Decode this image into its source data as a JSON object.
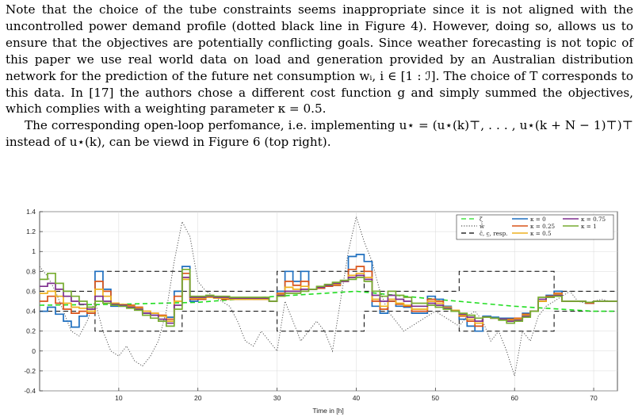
{
  "paragraphs": [
    "Note that the choice of the tube constraints seems inappropriate since it is not aligned with the uncontrolled power demand profile (dotted black line in Figure 4). However, doing so, allows us to ensure that the objectives are potentially conflicting goals. Since weather forecasting is not topic of this paper we use real world data on load and generation provided by an Australian distribution network for the prediction of the future net consumption wᵢ, i ∈ [1 : ℐ]. The choice of T corresponds to this data. In [17] the authors chose a different cost function g and simply summed the objectives, which complies with a weighting parameter κ = 0.5.",
    "The corresponding open-loop perfomance, i.e. implementing u⋆ = (u⋆(k)⊤, . . . , u⋆(k + N − 1)⊤)⊤ instead of u⋆(k), can be viewd in Figure 6 (top right)."
  ],
  "chart_data": {
    "type": "line",
    "xlabel": "Time in [h]",
    "ylabel": "",
    "xlim": [
      0,
      73
    ],
    "ylim": [
      -0.4,
      1.4
    ],
    "xticks": [
      10,
      20,
      30,
      40,
      50,
      60,
      70
    ],
    "yticks": [
      -0.4,
      -0.2,
      0,
      0.2,
      0.4,
      0.6,
      0.8,
      1,
      1.2,
      1.4
    ],
    "grid": true,
    "legend_position": "top-right",
    "series": [
      {
        "name": "ζ̄",
        "style": "dashed",
        "color": "#22dd22",
        "x": [
          0,
          10,
          20,
          30,
          40,
          50,
          60,
          70,
          73
        ],
        "y": [
          0.46,
          0.47,
          0.49,
          0.55,
          0.6,
          0.52,
          0.45,
          0.4,
          0.4
        ]
      },
      {
        "name": "ŵ",
        "style": "dotted",
        "color": "#555555",
        "x": [
          0,
          1,
          2,
          3,
          4,
          5,
          6,
          7,
          8,
          9,
          10,
          11,
          12,
          13,
          14,
          15,
          16,
          17,
          18,
          19,
          20,
          21,
          22,
          23,
          24,
          25,
          26,
          27,
          28,
          29,
          30,
          31,
          32,
          33,
          34,
          35,
          36,
          37,
          38,
          39,
          40,
          41,
          42,
          43,
          44,
          45,
          46,
          47,
          48,
          49,
          50,
          51,
          52,
          53,
          54,
          55,
          56,
          57,
          58,
          59,
          60,
          61,
          62,
          63,
          64,
          65,
          66,
          67,
          68,
          69,
          70,
          71,
          72
        ],
        "y": [
          0.85,
          0.75,
          0.6,
          0.4,
          0.2,
          0.15,
          0.3,
          0.5,
          0.2,
          0.0,
          -0.05,
          0.05,
          -0.1,
          -0.15,
          -0.05,
          0.1,
          0.4,
          0.9,
          1.3,
          1.15,
          0.7,
          0.6,
          0.55,
          0.5,
          0.45,
          0.3,
          0.1,
          0.05,
          0.2,
          0.1,
          0.0,
          0.5,
          0.3,
          0.1,
          0.2,
          0.3,
          0.2,
          0.0,
          0.5,
          1.0,
          1.35,
          1.1,
          0.9,
          0.6,
          0.4,
          0.3,
          0.2,
          0.25,
          0.3,
          0.35,
          0.4,
          0.35,
          0.3,
          0.25,
          0.35,
          0.4,
          0.3,
          0.1,
          0.2,
          0.0,
          -0.25,
          0.2,
          0.1,
          0.35,
          0.45,
          0.5,
          0.55,
          0.6,
          0.5,
          0.48,
          0.5,
          0.52,
          0.5
        ]
      },
      {
        "name": "c̄, c̲, resp.",
        "style": "dashed",
        "color": "#000000",
        "x": [
          0,
          7,
          7,
          18,
          18,
          30,
          30,
          41,
          41,
          53,
          53,
          65,
          65,
          73
        ],
        "y_upper": [
          0.6,
          0.6,
          0.8,
          0.8,
          0.6,
          0.6,
          0.8,
          0.8,
          0.6,
          0.6,
          0.8,
          0.8,
          0.6,
          0.6
        ],
        "y_lower": [
          0.4,
          0.4,
          0.2,
          0.2,
          0.4,
          0.4,
          0.2,
          0.2,
          0.4,
          0.4,
          0.2,
          0.2,
          0.4,
          0.4
        ]
      },
      {
        "name": "κ = 0",
        "style": "solid",
        "color": "#1f6fbf",
        "x": [
          0,
          1,
          2,
          3,
          4,
          5,
          6,
          7,
          8,
          9,
          10,
          11,
          12,
          13,
          14,
          15,
          16,
          17,
          18,
          19,
          20,
          21,
          22,
          23,
          24,
          25,
          26,
          27,
          28,
          29,
          30,
          31,
          32,
          33,
          34,
          35,
          36,
          37,
          38,
          39,
          40,
          41,
          42,
          43,
          44,
          45,
          46,
          47,
          48,
          49,
          50,
          51,
          52,
          53,
          54,
          55,
          56,
          57,
          58,
          59,
          60,
          61,
          62,
          63,
          64,
          65,
          66,
          67,
          68,
          69,
          70,
          71,
          72
        ],
        "y": [
          0.4,
          0.44,
          0.37,
          0.3,
          0.24,
          0.35,
          0.38,
          0.8,
          0.62,
          0.45,
          0.45,
          0.44,
          0.43,
          0.38,
          0.36,
          0.35,
          0.34,
          0.6,
          0.85,
          0.5,
          0.52,
          0.55,
          0.54,
          0.53,
          0.52,
          0.52,
          0.53,
          0.52,
          0.52,
          0.5,
          0.6,
          0.8,
          0.7,
          0.8,
          0.62,
          0.63,
          0.65,
          0.66,
          0.7,
          0.95,
          0.97,
          0.9,
          0.45,
          0.38,
          0.5,
          0.45,
          0.44,
          0.38,
          0.38,
          0.55,
          0.52,
          0.45,
          0.4,
          0.32,
          0.25,
          0.2,
          0.35,
          0.34,
          0.33,
          0.33,
          0.33,
          0.38,
          0.4,
          0.5,
          0.56,
          0.6,
          0.5,
          0.5,
          0.5,
          0.48,
          0.5,
          0.5,
          0.5
        ]
      },
      {
        "name": "κ = 0.25",
        "style": "solid",
        "color": "#d95319",
        "x": [
          0,
          1,
          2,
          3,
          4,
          5,
          6,
          7,
          8,
          9,
          10,
          11,
          12,
          13,
          14,
          15,
          16,
          17,
          18,
          19,
          20,
          21,
          22,
          23,
          24,
          25,
          26,
          27,
          28,
          29,
          30,
          31,
          32,
          33,
          34,
          35,
          36,
          37,
          38,
          39,
          40,
          41,
          42,
          43,
          44,
          45,
          46,
          47,
          48,
          49,
          50,
          51,
          52,
          53,
          54,
          55,
          56,
          57,
          58,
          59,
          60,
          61,
          62,
          63,
          64,
          65,
          66,
          67,
          68,
          69,
          70,
          71,
          72
        ],
        "y": [
          0.5,
          0.55,
          0.48,
          0.42,
          0.38,
          0.4,
          0.38,
          0.7,
          0.6,
          0.48,
          0.47,
          0.46,
          0.44,
          0.4,
          0.38,
          0.36,
          0.32,
          0.55,
          0.78,
          0.52,
          0.52,
          0.54,
          0.53,
          0.52,
          0.52,
          0.52,
          0.52,
          0.52,
          0.52,
          0.5,
          0.58,
          0.7,
          0.66,
          0.7,
          0.62,
          0.63,
          0.65,
          0.66,
          0.7,
          0.82,
          0.85,
          0.8,
          0.5,
          0.42,
          0.5,
          0.47,
          0.45,
          0.4,
          0.4,
          0.52,
          0.5,
          0.44,
          0.4,
          0.35,
          0.3,
          0.25,
          0.34,
          0.33,
          0.32,
          0.32,
          0.33,
          0.37,
          0.4,
          0.5,
          0.55,
          0.58,
          0.5,
          0.5,
          0.5,
          0.48,
          0.5,
          0.5,
          0.5
        ]
      },
      {
        "name": "κ = 0.5",
        "style": "solid",
        "color": "#edb120",
        "x": [
          0,
          1,
          2,
          3,
          4,
          5,
          6,
          7,
          8,
          9,
          10,
          11,
          12,
          13,
          14,
          15,
          16,
          17,
          18,
          19,
          20,
          21,
          22,
          23,
          24,
          25,
          26,
          27,
          28,
          29,
          30,
          31,
          32,
          33,
          34,
          35,
          36,
          37,
          38,
          39,
          40,
          41,
          42,
          43,
          44,
          45,
          46,
          47,
          48,
          49,
          50,
          51,
          52,
          53,
          54,
          55,
          56,
          57,
          58,
          59,
          60,
          61,
          62,
          63,
          64,
          65,
          66,
          67,
          68,
          69,
          70,
          71,
          72
        ],
        "y": [
          0.58,
          0.6,
          0.55,
          0.48,
          0.44,
          0.43,
          0.4,
          0.62,
          0.55,
          0.48,
          0.47,
          0.45,
          0.43,
          0.4,
          0.38,
          0.35,
          0.3,
          0.5,
          0.72,
          0.53,
          0.53,
          0.54,
          0.53,
          0.53,
          0.52,
          0.52,
          0.52,
          0.52,
          0.52,
          0.5,
          0.57,
          0.64,
          0.62,
          0.65,
          0.62,
          0.64,
          0.66,
          0.67,
          0.7,
          0.76,
          0.78,
          0.74,
          0.52,
          0.45,
          0.52,
          0.48,
          0.46,
          0.42,
          0.42,
          0.5,
          0.48,
          0.44,
          0.41,
          0.36,
          0.32,
          0.28,
          0.34,
          0.33,
          0.32,
          0.31,
          0.32,
          0.36,
          0.4,
          0.5,
          0.54,
          0.57,
          0.5,
          0.5,
          0.5,
          0.49,
          0.5,
          0.5,
          0.5
        ]
      },
      {
        "name": "κ = 0.75",
        "style": "solid",
        "color": "#7e2f8e",
        "x": [
          0,
          1,
          2,
          3,
          4,
          5,
          6,
          7,
          8,
          9,
          10,
          11,
          12,
          13,
          14,
          15,
          16,
          17,
          18,
          19,
          20,
          21,
          22,
          23,
          24,
          25,
          26,
          27,
          28,
          29,
          30,
          31,
          32,
          33,
          34,
          35,
          36,
          37,
          38,
          39,
          40,
          41,
          42,
          43,
          44,
          45,
          46,
          47,
          48,
          49,
          50,
          51,
          52,
          53,
          54,
          55,
          56,
          57,
          58,
          59,
          60,
          61,
          62,
          63,
          64,
          65,
          66,
          67,
          68,
          69,
          70,
          71,
          72
        ],
        "y": [
          0.65,
          0.68,
          0.62,
          0.55,
          0.5,
          0.47,
          0.42,
          0.55,
          0.5,
          0.47,
          0.46,
          0.44,
          0.42,
          0.38,
          0.36,
          0.32,
          0.28,
          0.46,
          0.74,
          0.54,
          0.54,
          0.55,
          0.54,
          0.54,
          0.53,
          0.53,
          0.53,
          0.53,
          0.53,
          0.5,
          0.56,
          0.6,
          0.6,
          0.62,
          0.62,
          0.64,
          0.66,
          0.68,
          0.7,
          0.74,
          0.76,
          0.72,
          0.56,
          0.5,
          0.56,
          0.52,
          0.5,
          0.45,
          0.45,
          0.48,
          0.46,
          0.43,
          0.4,
          0.37,
          0.34,
          0.3,
          0.34,
          0.33,
          0.32,
          0.3,
          0.31,
          0.35,
          0.4,
          0.52,
          0.54,
          0.56,
          0.5,
          0.5,
          0.5,
          0.49,
          0.5,
          0.5,
          0.5
        ]
      },
      {
        "name": "κ = 1",
        "style": "solid",
        "color": "#77ac30",
        "x": [
          0,
          1,
          2,
          3,
          4,
          5,
          6,
          7,
          8,
          9,
          10,
          11,
          12,
          13,
          14,
          15,
          16,
          17,
          18,
          19,
          20,
          21,
          22,
          23,
          24,
          25,
          26,
          27,
          28,
          29,
          30,
          31,
          32,
          33,
          34,
          35,
          36,
          37,
          38,
          39,
          40,
          41,
          42,
          43,
          44,
          45,
          46,
          47,
          48,
          49,
          50,
          51,
          52,
          53,
          54,
          55,
          56,
          57,
          58,
          59,
          60,
          61,
          62,
          63,
          64,
          65,
          66,
          67,
          68,
          69,
          70,
          71,
          72
        ],
        "y": [
          0.72,
          0.78,
          0.68,
          0.6,
          0.55,
          0.5,
          0.44,
          0.5,
          0.48,
          0.46,
          0.45,
          0.43,
          0.41,
          0.36,
          0.33,
          0.3,
          0.25,
          0.42,
          0.82,
          0.55,
          0.55,
          0.56,
          0.55,
          0.55,
          0.54,
          0.54,
          0.54,
          0.54,
          0.54,
          0.5,
          0.55,
          0.58,
          0.58,
          0.6,
          0.62,
          0.65,
          0.67,
          0.69,
          0.71,
          0.72,
          0.74,
          0.7,
          0.6,
          0.55,
          0.6,
          0.56,
          0.54,
          0.48,
          0.48,
          0.46,
          0.44,
          0.42,
          0.4,
          0.38,
          0.36,
          0.33,
          0.34,
          0.33,
          0.31,
          0.28,
          0.3,
          0.34,
          0.4,
          0.54,
          0.54,
          0.55,
          0.5,
          0.5,
          0.5,
          0.49,
          0.5,
          0.5,
          0.5
        ]
      }
    ],
    "colors": {
      "axis": "#262626",
      "grid": "#d9d9d9"
    }
  }
}
